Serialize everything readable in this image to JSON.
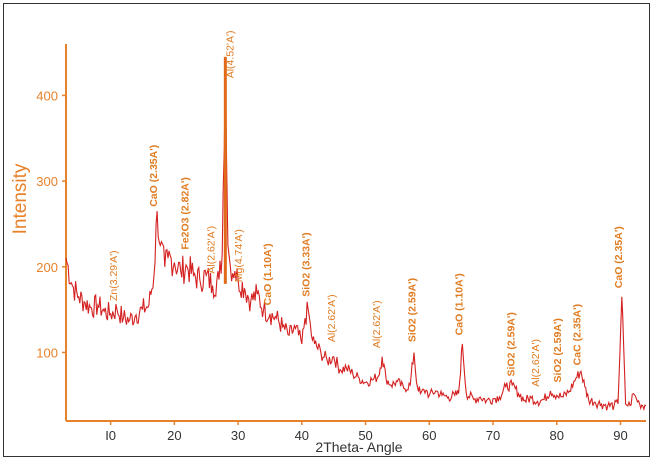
{
  "chart_data": {
    "type": "line",
    "title": "",
    "xlabel": "2Theta- Angle",
    "ylabel": "Intensity",
    "xlim": [
      3,
      94
    ],
    "ylim": [
      20,
      460
    ],
    "xticks": [
      {
        "value": 10,
        "label": "I0"
      },
      {
        "value": 20,
        "label": "20"
      },
      {
        "value": 30,
        "label": "30"
      },
      {
        "value": 40,
        "label": "40"
      },
      {
        "value": 50,
        "label": "50"
      },
      {
        "value": 60,
        "label": "60"
      },
      {
        "value": 70,
        "label": "70"
      },
      {
        "value": 80,
        "label": "80"
      },
      {
        "value": 90,
        "label": "90"
      }
    ],
    "yticks": [
      100,
      200,
      300,
      400
    ],
    "grid": false,
    "colors": {
      "axis": "#e8822a",
      "label": "#e8822a",
      "line": "#d42020",
      "tall_peak": "#e06a1a",
      "ann": "#e07c22"
    },
    "series": [
      {
        "x": [
          3,
          4,
          5,
          6,
          7,
          8,
          9,
          10,
          11,
          12,
          13,
          14,
          15,
          16,
          16.8,
          17.3,
          17.8,
          18.5,
          19,
          20,
          21,
          22,
          23,
          24,
          25,
          26,
          27,
          27.5,
          28,
          28.4,
          28.8,
          29.5,
          30,
          31,
          32,
          33,
          34,
          35,
          36,
          37,
          38,
          39,
          40,
          40.5,
          41,
          41.5,
          42,
          43,
          44,
          45,
          46,
          47,
          48,
          49,
          50,
          51,
          52,
          52.6,
          53.2,
          54,
          55,
          56,
          57,
          57.6,
          58,
          58.6,
          59.5,
          60,
          61,
          62,
          63,
          64,
          64.6,
          65.2,
          65.8,
          67,
          68,
          69,
          70,
          71,
          72,
          73,
          74,
          75,
          76,
          77,
          78,
          79,
          80,
          81,
          82,
          83,
          83.8,
          84.4,
          85,
          86,
          87,
          88,
          89,
          89.6,
          90.2,
          90.8,
          91.5,
          92,
          92.5,
          93,
          94
        ],
        "y": [
          210,
          178,
          165,
          158,
          152,
          155,
          148,
          145,
          150,
          140,
          138,
          144,
          150,
          155,
          190,
          265,
          225,
          200,
          210,
          205,
          195,
          200,
          190,
          185,
          190,
          178,
          185,
          215,
          445,
          225,
          200,
          195,
          185,
          175,
          160,
          168,
          150,
          145,
          140,
          130,
          120,
          128,
          110,
          140,
          150,
          120,
          110,
          100,
          90,
          95,
          80,
          82,
          75,
          70,
          65,
          68,
          72,
          95,
          70,
          62,
          66,
          58,
          62,
          100,
          65,
          52,
          56,
          50,
          55,
          50,
          48,
          50,
          52,
          110,
          52,
          45,
          48,
          44,
          46,
          48,
          60,
          62,
          52,
          44,
          47,
          43,
          45,
          55,
          50,
          48,
          55,
          70,
          78,
          60,
          45,
          42,
          40,
          38,
          38,
          40,
          165,
          40,
          38,
          52,
          46,
          40,
          38
        ]
      }
    ],
    "annotations": [
      {
        "text": "Zn(3.29'A')",
        "x": 11,
        "y": 160,
        "rotate": -90,
        "bold": false
      },
      {
        "text": "CaO (2.35A')",
        "x": 17.3,
        "y": 270,
        "rotate": -90,
        "bold": true
      },
      {
        "text": "Fe2O3 (2.82A')",
        "x": 22.2,
        "y": 220,
        "rotate": -90,
        "bold": true
      },
      {
        "text": "Al(2.62'A')",
        "x": 26.3,
        "y": 192,
        "rotate": -90,
        "bold": false
      },
      {
        "text": "Al(4.52'A')",
        "x": 29.3,
        "y": 420,
        "rotate": -90,
        "bold": false
      },
      {
        "text": "Mg(4.74'A')",
        "x": 30.6,
        "y": 182,
        "rotate": -90,
        "bold": false
      },
      {
        "text": "CaO (1.10A')",
        "x": 35.2,
        "y": 155,
        "rotate": -90,
        "bold": true
      },
      {
        "text": "SiO2 (3.33A')",
        "x": 41.2,
        "y": 165,
        "rotate": -90,
        "bold": true
      },
      {
        "text": "Al(2.62'A')",
        "x": 45.2,
        "y": 112,
        "rotate": -90,
        "bold": false
      },
      {
        "text": "Al(2.62'A')",
        "x": 52.3,
        "y": 105,
        "rotate": -90,
        "bold": false
      },
      {
        "text": "SiO2 (2.59A')",
        "x": 57.8,
        "y": 112,
        "rotate": -90,
        "bold": true
      },
      {
        "text": "CaO (1.10A')",
        "x": 65.2,
        "y": 120,
        "rotate": -90,
        "bold": true
      },
      {
        "text": "SiO2 (2.59A')",
        "x": 73.4,
        "y": 72,
        "rotate": -90,
        "bold": true
      },
      {
        "text": "Al(2.62'A')",
        "x": 77.2,
        "y": 60,
        "rotate": -90,
        "bold": false
      },
      {
        "text": "SiO2 (2.59A')",
        "x": 80.7,
        "y": 65,
        "rotate": -90,
        "bold": true
      },
      {
        "text": "CaC (2.35A')",
        "x": 83.7,
        "y": 85,
        "rotate": -90,
        "bold": true
      },
      {
        "text": "CaO (2.35A')",
        "x": 90.2,
        "y": 175,
        "rotate": -90,
        "bold": true
      }
    ],
    "tall_peak": {
      "x": 28,
      "y": 445
    }
  }
}
